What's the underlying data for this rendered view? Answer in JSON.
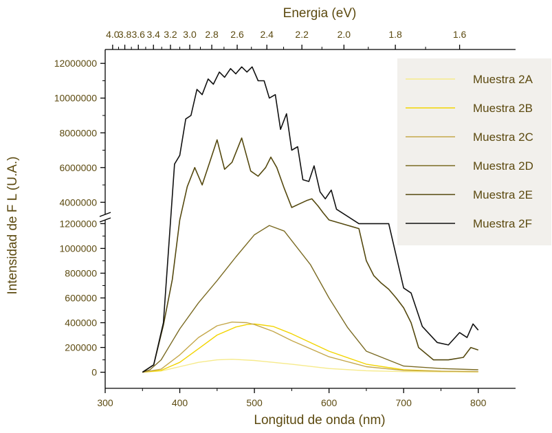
{
  "colors": {
    "text": "#5c4a10",
    "axis": "#000000",
    "legend_bg": "#f2f0ec"
  },
  "chart_data": {
    "type": "line",
    "title": "",
    "xlabel": "Longitud de onda (nm)",
    "ylabel": "Intensidad de F L (U.A.)",
    "top_xlabel": "Energia (eV)",
    "xlim": [
      300,
      850
    ],
    "x_ticks": [
      300,
      400,
      500,
      600,
      700,
      800
    ],
    "x_tick_labels": [
      "300",
      "400",
      "500",
      "600",
      "700",
      "800"
    ],
    "top_ticks_ev": [
      4.0,
      3.8,
      3.6,
      3.4,
      3.2,
      3.0,
      2.8,
      2.6,
      2.4,
      2.2,
      2.0,
      1.8,
      1.6
    ],
    "top_tick_labels": [
      "4.0",
      "3.8",
      "3.6",
      "3.4",
      "3.2",
      "3.0",
      "2.8",
      "2.6",
      "2.4",
      "2.2",
      "2.0",
      "1.8",
      "1.6"
    ],
    "y_lower": {
      "ylim": [
        -130000,
        1230000
      ],
      "ticks": [
        0,
        200000,
        400000,
        600000,
        800000,
        1000000,
        1200000
      ],
      "tick_labels": [
        "0",
        "200000",
        "400000",
        "600000",
        "800000",
        "1000000",
        "1200000"
      ]
    },
    "y_upper": {
      "ylim": [
        3300000,
        12800000
      ],
      "ticks": [
        4000000,
        6000000,
        8000000,
        10000000,
        12000000
      ],
      "tick_labels": [
        "4000000",
        "6000000",
        "8000000",
        "10000000",
        "12000000"
      ]
    },
    "axis_break": true,
    "legend_position": "top-right",
    "grid": false,
    "series": [
      {
        "name": "Muestra 2A",
        "color": "#f6ea8a",
        "x": [
          350,
          375,
          400,
          425,
          450,
          470,
          500,
          550,
          600,
          650,
          700,
          750,
          800
        ],
        "y": [
          0,
          10000,
          45000,
          80000,
          100000,
          105000,
          95000,
          65000,
          30000,
          12000,
          5000,
          3000,
          2000
        ]
      },
      {
        "name": "Muestra 2B",
        "color": "#f2d400",
        "x": [
          350,
          375,
          400,
          425,
          450,
          475,
          490,
          500,
          525,
          550,
          600,
          650,
          700,
          750,
          800
        ],
        "y": [
          0,
          15000,
          80000,
          190000,
          300000,
          365000,
          385000,
          390000,
          370000,
          310000,
          170000,
          65000,
          20000,
          8000,
          5000
        ]
      },
      {
        "name": "Muestra 2C",
        "color": "#c4a74a",
        "x": [
          350,
          375,
          400,
          425,
          450,
          470,
          490,
          500,
          525,
          550,
          600,
          650,
          700,
          750,
          800
        ],
        "y": [
          0,
          25000,
          140000,
          280000,
          375000,
          405000,
          400000,
          385000,
          330000,
          255000,
          125000,
          45000,
          15000,
          8000,
          5000
        ]
      },
      {
        "name": "Muestra 2D",
        "color": "#7a6a22",
        "x": [
          350,
          360,
          375,
          400,
          425,
          450,
          475,
          500,
          520,
          540,
          575,
          600,
          625,
          650,
          700,
          750,
          800
        ],
        "y": [
          0,
          20000,
          100000,
          350000,
          560000,
          740000,
          930000,
          1110000,
          1185000,
          1140000,
          870000,
          600000,
          360000,
          170000,
          50000,
          30000,
          20000
        ]
      },
      {
        "name": "Muestra 2E",
        "color": "#54480e",
        "x": [
          350,
          365,
          378,
          390,
          400,
          410,
          420,
          430,
          440,
          450,
          460,
          470,
          483,
          495,
          505,
          515,
          522,
          530,
          540,
          550,
          560,
          570,
          577,
          585,
          592,
          600,
          640,
          650,
          660,
          670,
          680,
          690,
          700,
          710,
          720,
          740,
          760,
          780,
          790,
          800
        ],
        "y": [
          0,
          60000,
          380000,
          750000,
          3000000,
          4900000,
          6000000,
          5000000,
          6300000,
          7600000,
          5900000,
          6300000,
          7700000,
          5800000,
          5500000,
          6000000,
          6600000,
          6000000,
          4800000,
          3700000,
          3900000,
          4100000,
          4200000,
          3800000,
          3400000,
          3100000,
          1160000,
          900000,
          780000,
          720000,
          670000,
          600000,
          520000,
          400000,
          200000,
          100000,
          100000,
          120000,
          200000,
          180000
        ]
      },
      {
        "name": "Muestra 2F",
        "color": "#101010",
        "x": [
          350,
          365,
          378,
          393,
          400,
          408,
          415,
          423,
          430,
          438,
          445,
          453,
          460,
          468,
          475,
          483,
          490,
          497,
          505,
          513,
          520,
          528,
          535,
          543,
          550,
          558,
          565,
          573,
          580,
          588,
          595,
          603,
          610,
          640,
          650,
          660,
          680,
          700,
          710,
          725,
          745,
          760,
          775,
          785,
          793,
          800
        ],
        "y": [
          0,
          60000,
          400000,
          6200000,
          6700000,
          8800000,
          9000000,
          10500000,
          10200000,
          11100000,
          10800000,
          11500000,
          11200000,
          11700000,
          11400000,
          11800000,
          11500000,
          11800000,
          11000000,
          11000000,
          10000000,
          10200000,
          8200000,
          9100000,
          7000000,
          7200000,
          5300000,
          5200000,
          6100000,
          4600000,
          4200000,
          4700000,
          3600000,
          1200000,
          1200000,
          1200000,
          1200000,
          680000,
          640000,
          370000,
          240000,
          220000,
          320000,
          280000,
          390000,
          340000
        ]
      }
    ]
  }
}
